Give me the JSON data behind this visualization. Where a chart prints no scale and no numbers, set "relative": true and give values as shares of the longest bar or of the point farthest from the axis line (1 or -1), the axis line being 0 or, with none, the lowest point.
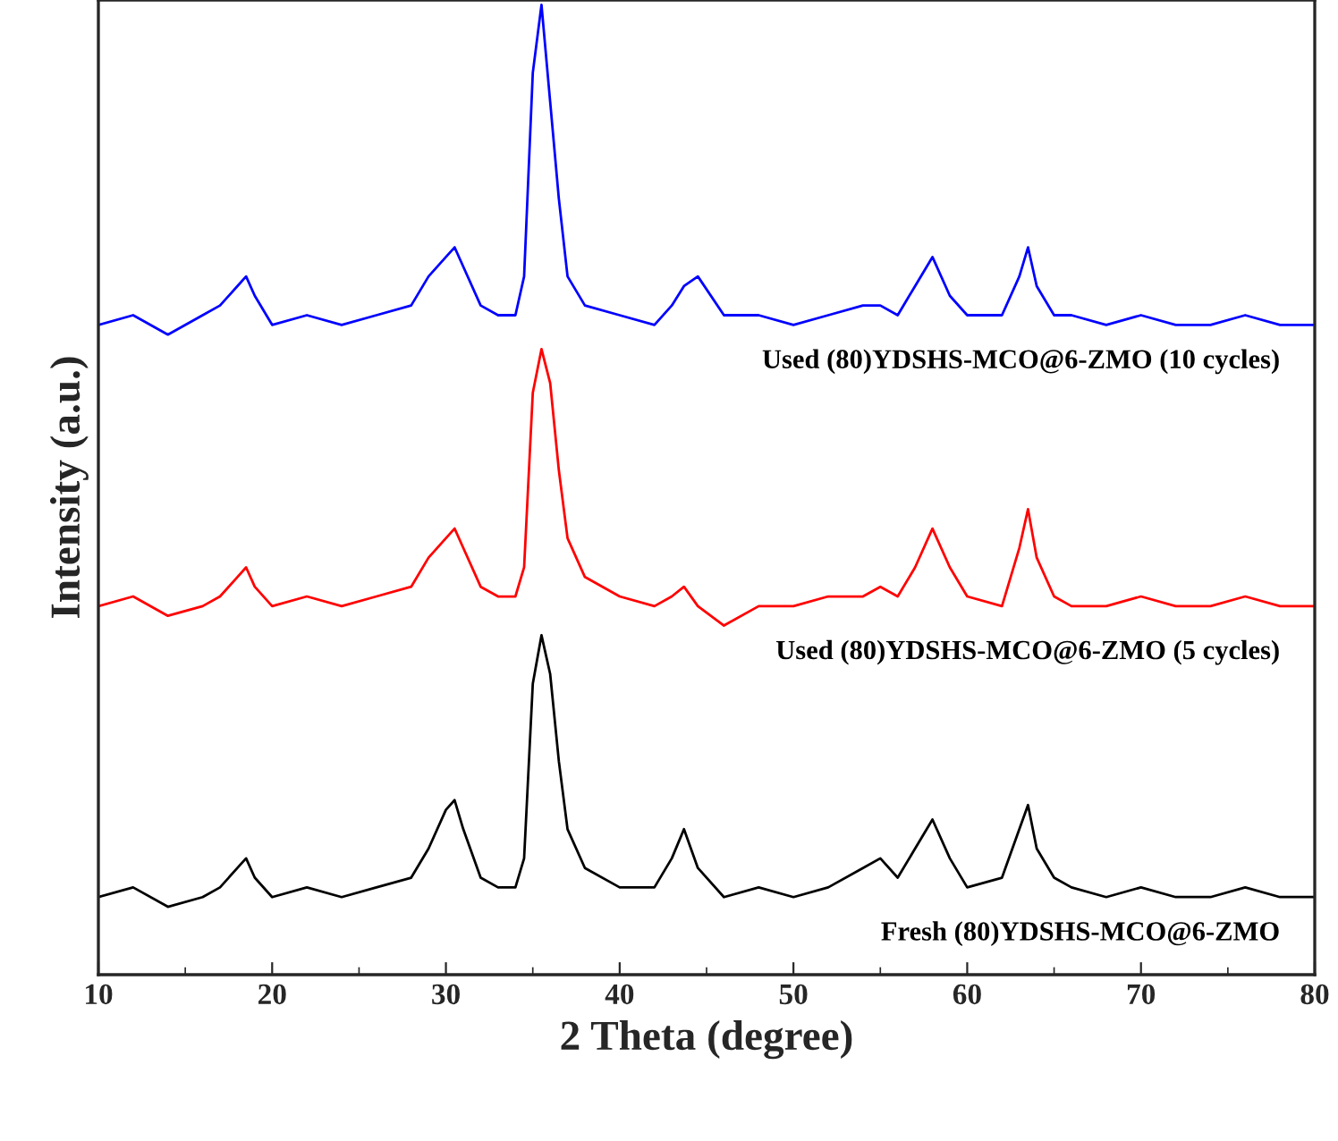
{
  "chart_data": {
    "type": "line",
    "xlabel": "2 Theta (degree)",
    "ylabel": "Intensity (a.u.)",
    "relative": true,
    "xlim": [
      10,
      80
    ],
    "xticks": [
      10,
      20,
      30,
      40,
      50,
      60,
      70,
      80
    ],
    "legend": false,
    "grid": false,
    "marker": "none",
    "line_style": "solid",
    "x": [
      10,
      12,
      14,
      16,
      17,
      18,
      18.5,
      19,
      20,
      22,
      24,
      26,
      28,
      29,
      30,
      30.5,
      31,
      32,
      33,
      34,
      34.5,
      35,
      35.5,
      36,
      36.5,
      37,
      38,
      40,
      42,
      43,
      43.7,
      44.5,
      46,
      48,
      50,
      52,
      54,
      55,
      56,
      57,
      58,
      59,
      60,
      62,
      63,
      63.5,
      64,
      65,
      66,
      68,
      70,
      72,
      74,
      76,
      78,
      80
    ],
    "series": [
      {
        "name": "Fresh (80)YDSHS-MCO@6-ZMO",
        "color": "#000000",
        "values": [
          0.08,
          0.09,
          0.07,
          0.08,
          0.09,
          0.11,
          0.12,
          0.1,
          0.08,
          0.09,
          0.08,
          0.09,
          0.1,
          0.13,
          0.17,
          0.18,
          0.15,
          0.1,
          0.09,
          0.09,
          0.12,
          0.3,
          0.35,
          0.31,
          0.22,
          0.15,
          0.11,
          0.09,
          0.09,
          0.12,
          0.15,
          0.11,
          0.08,
          0.09,
          0.08,
          0.09,
          0.11,
          0.12,
          0.1,
          0.13,
          0.16,
          0.12,
          0.09,
          0.1,
          0.15,
          0.175,
          0.13,
          0.1,
          0.09,
          0.08,
          0.09,
          0.08,
          0.08,
          0.09,
          0.08,
          0.08
        ]
      },
      {
        "name": "Used (80)YDSHS-MCO@6-ZMO (5 cycles)",
        "color": "#ff0000",
        "values": [
          0.38,
          0.39,
          0.37,
          0.38,
          0.39,
          0.41,
          0.42,
          0.4,
          0.38,
          0.39,
          0.38,
          0.39,
          0.4,
          0.43,
          0.45,
          0.46,
          0.44,
          0.4,
          0.39,
          0.39,
          0.42,
          0.6,
          0.645,
          0.61,
          0.52,
          0.45,
          0.41,
          0.39,
          0.38,
          0.39,
          0.4,
          0.38,
          0.36,
          0.38,
          0.38,
          0.39,
          0.39,
          0.4,
          0.39,
          0.42,
          0.46,
          0.42,
          0.39,
          0.38,
          0.44,
          0.48,
          0.43,
          0.39,
          0.38,
          0.38,
          0.39,
          0.38,
          0.38,
          0.39,
          0.38,
          0.38
        ]
      },
      {
        "name": "Used (80)YDSHS-MCO@6-ZMO (10 cycles)",
        "color": "#0000ff",
        "values": [
          0.67,
          0.68,
          0.66,
          0.68,
          0.69,
          0.71,
          0.72,
          0.7,
          0.67,
          0.68,
          0.67,
          0.68,
          0.69,
          0.72,
          0.74,
          0.75,
          0.73,
          0.69,
          0.68,
          0.68,
          0.72,
          0.93,
          1.0,
          0.9,
          0.8,
          0.72,
          0.69,
          0.68,
          0.67,
          0.69,
          0.71,
          0.72,
          0.68,
          0.68,
          0.67,
          0.68,
          0.69,
          0.69,
          0.68,
          0.71,
          0.74,
          0.7,
          0.68,
          0.68,
          0.72,
          0.75,
          0.71,
          0.68,
          0.68,
          0.67,
          0.68,
          0.67,
          0.67,
          0.68,
          0.67,
          0.67
        ]
      }
    ]
  }
}
